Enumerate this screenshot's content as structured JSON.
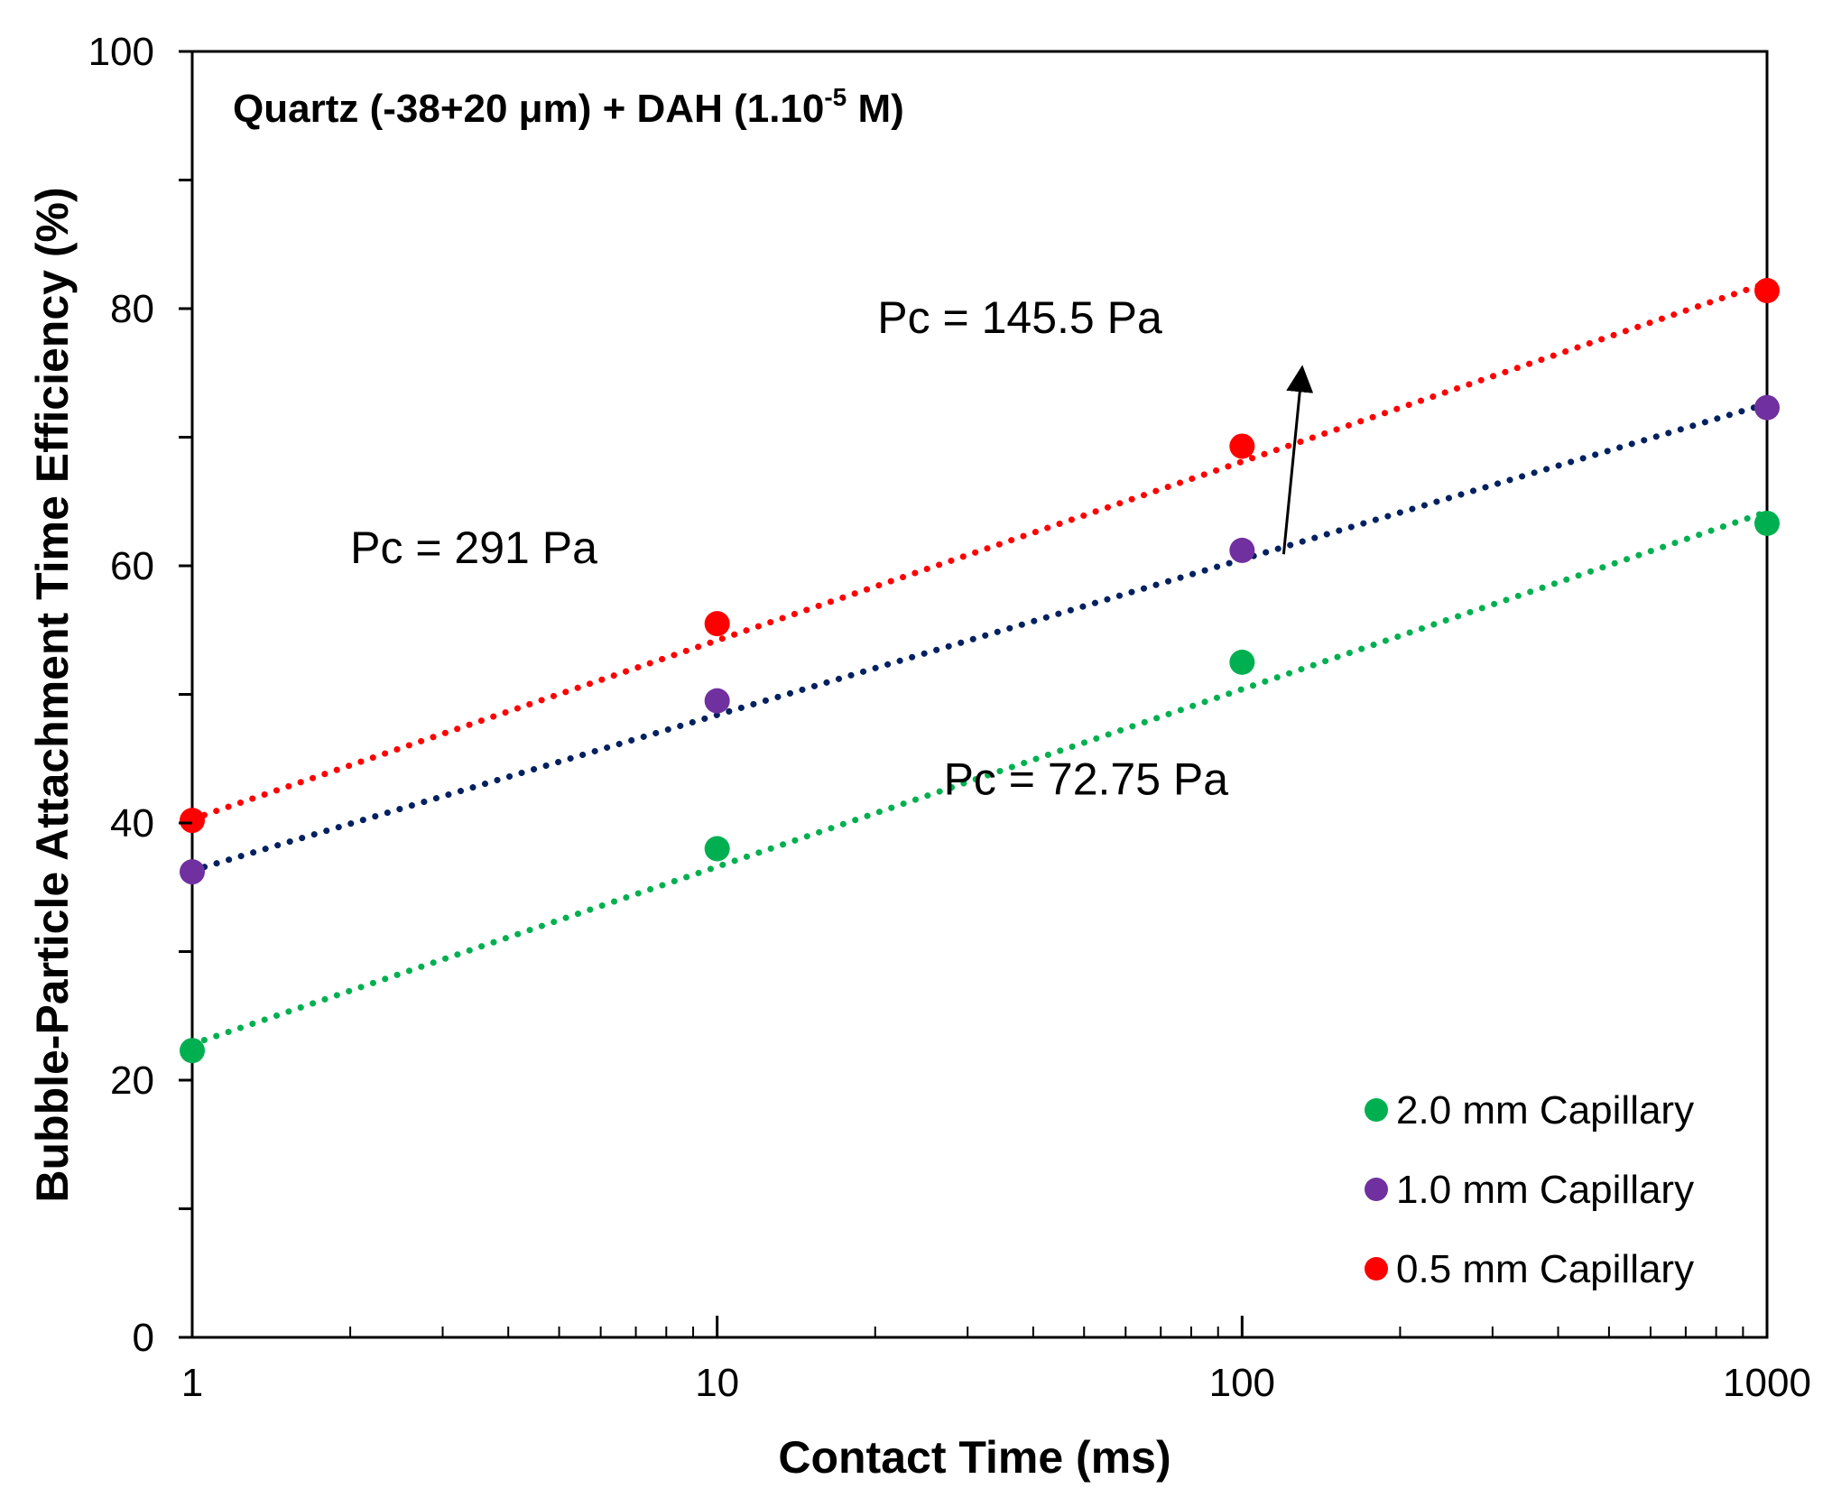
{
  "chart_data": {
    "type": "scatter",
    "title": "Quartz (-38+20 μm) + DAH (1.10",
    "title_superscript": "-5",
    "title_suffix": " M)",
    "xlabel": "Contact Time (ms)",
    "ylabel": "Bubble-Particle Attachment Time Efficiency (%)",
    "xscale": "log",
    "xlim": [
      1,
      1000
    ],
    "ylim": [
      0,
      100
    ],
    "x_ticks": [
      1,
      10,
      100,
      1000
    ],
    "x_tick_labels": [
      "1",
      "10",
      "100",
      "1000"
    ],
    "y_ticks": [
      0,
      20,
      40,
      60,
      80,
      100
    ],
    "y_tick_labels": [
      "0",
      "20",
      "40",
      "60",
      "80",
      "100"
    ],
    "y_minor_step": 10,
    "grid": false,
    "legend_position": "bottom-right",
    "series": [
      {
        "name": "2.0 mm Capillary",
        "color": "#00b050",
        "trend_color": "#00b050",
        "x": [
          1,
          10,
          100,
          1000
        ],
        "y": [
          22.3,
          38.0,
          52.5,
          63.3
        ],
        "trend": [
          22.8,
          36.6,
          50.4,
          64.2
        ]
      },
      {
        "name": "1.0 mm Capillary",
        "color": "#7030a0",
        "trend_color": "#002060",
        "x": [
          1,
          10,
          100,
          1000
        ],
        "y": [
          36.2,
          49.5,
          61.2,
          72.3
        ],
        "trend": [
          36.3,
          48.4,
          60.5,
          72.6
        ]
      },
      {
        "name": "0.5 mm Capillary",
        "color": "#ff0000",
        "trend_color": "#ff0000",
        "x": [
          1,
          10,
          100,
          1000
        ],
        "y": [
          40.2,
          55.5,
          69.3,
          81.4
        ],
        "trend": [
          40.3,
          54.2,
          68.1,
          82.0
        ]
      }
    ],
    "annotations": [
      {
        "text": "Pc = 291 Pa",
        "x": 2.0,
        "y": 60.2,
        "series": "0.5 mm Capillary"
      },
      {
        "text": "Pc = 145.5 Pa",
        "x": 20.2,
        "y": 78.1,
        "series": "1.0 mm Capillary"
      },
      {
        "text": "Pc = 72.75 Pa",
        "x": 27.0,
        "y": 42.2,
        "series": "2.0 mm Capillary"
      }
    ],
    "arrow": {
      "from": [
        120,
        60.9
      ],
      "to": [
        130,
        75.2
      ]
    }
  }
}
